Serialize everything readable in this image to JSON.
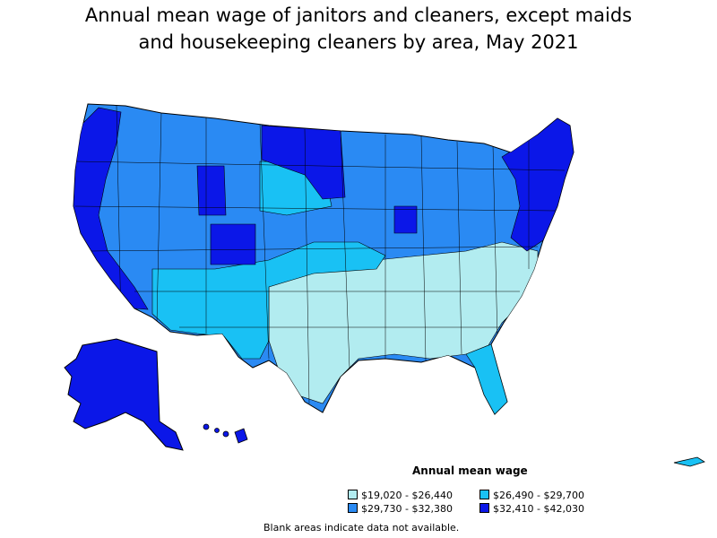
{
  "title_line1": "Annual mean wage of janitors and cleaners, except maids",
  "title_line2": "and housekeeping cleaners by area, May 2021",
  "legend": {
    "title": "Annual mean wage",
    "items": [
      {
        "label": "$19,020 - $26,440",
        "color": "#b2ecf0"
      },
      {
        "label": "$26,490 - $29,700",
        "color": "#19c1f4"
      },
      {
        "label": "$29,730 - $32,380",
        "color": "#2a8af3"
      },
      {
        "label": "$32,410 - $42,030",
        "color": "#0b17e8"
      }
    ]
  },
  "footnote": "Blank areas indicate data not available.",
  "colors": {
    "tier1": "#b2ecf0",
    "tier2": "#19c1f4",
    "tier3": "#2a8af3",
    "tier4": "#0b17e8",
    "border": "#000000"
  }
}
